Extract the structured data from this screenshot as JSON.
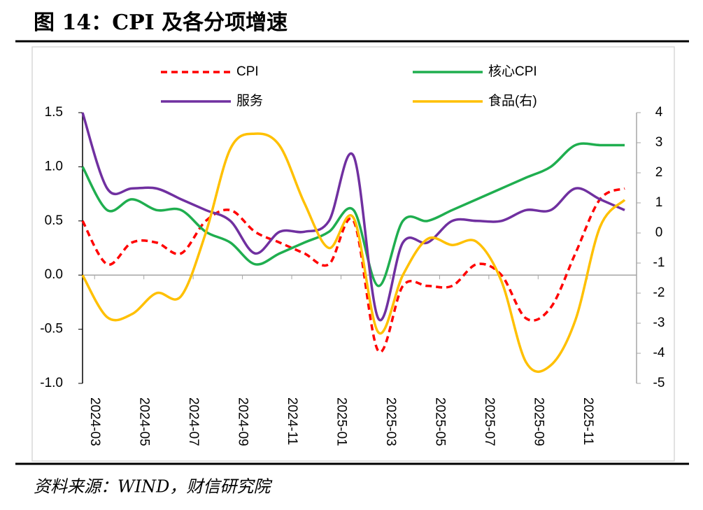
{
  "header": {
    "title": "图 14：CPI 及各分项增速"
  },
  "chart_data": {
    "type": "line",
    "smooth": true,
    "categories": [
      null,
      "2024-03",
      null,
      "2024-05",
      null,
      "2024-07",
      null,
      "2024-09",
      null,
      "2024-11",
      null,
      "2025-01",
      null,
      "2025-03",
      null,
      "2025-05",
      null,
      "2025-07",
      null,
      "2025-09",
      null,
      "2025-11",
      null
    ],
    "series": [
      {
        "name": "CPI",
        "color": "#ff0000",
        "dashed": true,
        "values": [
          0.5,
          0.1,
          0.3,
          0.3,
          0.2,
          0.5,
          0.6,
          0.4,
          0.3,
          0.2,
          0.1,
          0.5,
          -0.7,
          -0.1,
          -0.1,
          -0.1,
          0.1,
          0.0,
          -0.4,
          -0.3,
          0.2,
          0.7,
          0.8
        ]
      },
      {
        "name": "核心CPI",
        "color": "#1fae4f",
        "values": [
          1.0,
          0.6,
          0.7,
          0.6,
          0.6,
          0.4,
          0.3,
          0.1,
          0.2,
          0.3,
          0.4,
          0.6,
          -0.1,
          0.5,
          0.5,
          0.6,
          0.7,
          0.8,
          0.9,
          1.0,
          1.2,
          1.2,
          1.2
        ]
      },
      {
        "name": "服务",
        "color": "#7030a0",
        "values": [
          1.5,
          0.8,
          0.8,
          0.8,
          0.7,
          0.6,
          0.5,
          0.2,
          0.4,
          0.4,
          0.5,
          1.1,
          -0.4,
          0.3,
          0.3,
          0.5,
          0.5,
          0.5,
          0.6,
          0.6,
          0.8,
          0.7,
          0.6
        ]
      },
      {
        "name": "食品(右)",
        "color": "#ffc000",
        "axis": "y2",
        "values": [
          -1.4,
          -2.8,
          -2.7,
          -2.0,
          -2.1,
          0.0,
          2.8,
          3.3,
          2.9,
          1.0,
          -0.5,
          0.5,
          -3.3,
          -1.4,
          -0.2,
          -0.4,
          -0.3,
          -1.6,
          -4.3,
          -4.4,
          -2.9,
          0.2,
          1.1
        ]
      }
    ],
    "ylim": [
      -1.0,
      1.5
    ],
    "yticks": [
      {
        "value": 1.5,
        "label": "1.5"
      },
      {
        "value": 1.0,
        "label": "1.0"
      },
      {
        "value": 0.5,
        "label": "0.5"
      },
      {
        "value": 0.0,
        "label": "0.0"
      },
      {
        "value": -0.5,
        "label": "-0.5"
      },
      {
        "value": -1.0,
        "label": "-1.0"
      }
    ],
    "y2lim": [
      -5,
      4
    ],
    "y2ticks": [
      4,
      3,
      2,
      1,
      0,
      -1,
      -2,
      -3,
      -4,
      -5
    ]
  },
  "footer": {
    "source": "资料来源：WIND，财信研究院"
  }
}
